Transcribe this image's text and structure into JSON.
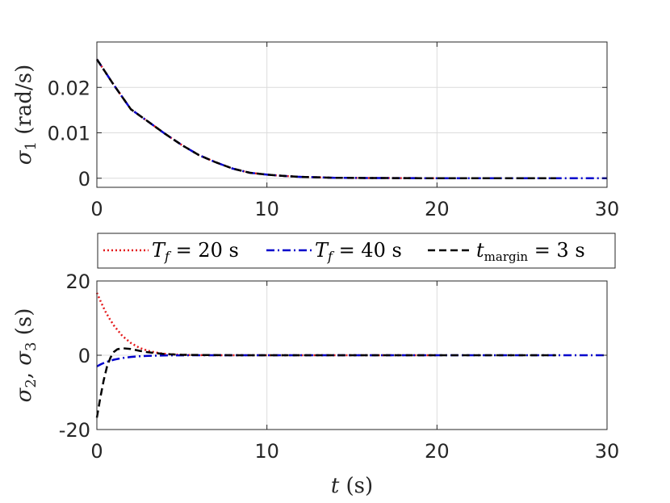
{
  "chart_data": [
    {
      "type": "line",
      "ylabel": "σ1 (rad/s)",
      "xlabel": "",
      "xlim": [
        0,
        30
      ],
      "ylim": [
        -0.002,
        0.03
      ],
      "xticks": [
        0,
        10,
        20,
        30
      ],
      "xtick_labels": [
        "0",
        "10",
        "20",
        "30"
      ],
      "yticks": [
        0,
        0.01,
        0.02
      ],
      "ytick_labels": [
        "0",
        "0.01",
        "0.02"
      ],
      "grid": true,
      "series": [
        {
          "name": "Tf = 20 s",
          "color": "#e41a1c",
          "dash": "dotted",
          "x": [
            0,
            1,
            2,
            3,
            4,
            5,
            6,
            7,
            8,
            9,
            10,
            11,
            12,
            13,
            14,
            16,
            18,
            20
          ],
          "y": [
            0.0262,
            0.0205,
            0.0152,
            0.0125,
            0.0098,
            0.0073,
            0.0051,
            0.0035,
            0.0021,
            0.0012,
            0.0008,
            0.0005,
            0.0003,
            0.0002,
            0.0001,
            5e-05,
            2e-05,
            0.0
          ]
        },
        {
          "name": "Tf = 40 s",
          "color": "#0000cc",
          "dash": "dashdot",
          "x": [
            0,
            1,
            2,
            3,
            4,
            5,
            6,
            7,
            8,
            9,
            10,
            11,
            12,
            13,
            14,
            16,
            18,
            20,
            25,
            30
          ],
          "y": [
            0.0262,
            0.0205,
            0.0152,
            0.0125,
            0.0098,
            0.0073,
            0.0051,
            0.0035,
            0.0021,
            0.0012,
            0.0008,
            0.0005,
            0.0003,
            0.0002,
            0.0001,
            5e-05,
            2e-05,
            0.0,
            0.0,
            0.0
          ]
        },
        {
          "name": "tmargin = 3 s",
          "color": "#000000",
          "dash": "dashed",
          "x": [
            0,
            1,
            2,
            3,
            4,
            5,
            6,
            7,
            8,
            9,
            10,
            11,
            12,
            13,
            14,
            16,
            18,
            20,
            25,
            27
          ],
          "y": [
            0.0262,
            0.0205,
            0.0152,
            0.0125,
            0.0098,
            0.0073,
            0.0051,
            0.0035,
            0.0021,
            0.0012,
            0.0008,
            0.0005,
            0.0003,
            0.0002,
            0.0001,
            5e-05,
            2e-05,
            0.0,
            0.0,
            0.0
          ]
        }
      ]
    },
    {
      "type": "line",
      "ylabel": "σ2, σ3 (s)",
      "xlabel": "t (s)",
      "xlim": [
        0,
        30
      ],
      "ylim": [
        -20,
        20
      ],
      "xticks": [
        0,
        10,
        20,
        30
      ],
      "xtick_labels": [
        "0",
        "10",
        "20",
        "30"
      ],
      "yticks": [
        -20,
        0,
        20
      ],
      "ytick_labels": [
        "-20",
        "0",
        "20"
      ],
      "grid": true,
      "series": [
        {
          "name": "Tf = 20 s",
          "color": "#e41a1c",
          "dash": "dotted",
          "x": [
            0,
            0.25,
            0.5,
            0.75,
            1,
            1.5,
            2,
            2.5,
            3,
            3.5,
            4,
            5,
            6,
            8,
            10,
            15,
            20
          ],
          "y": [
            16.8,
            14.2,
            11.8,
            9.8,
            8.0,
            5.2,
            3.3,
            2.0,
            1.2,
            0.7,
            0.4,
            0.1,
            0.03,
            0,
            0,
            0,
            0
          ]
        },
        {
          "name": "Tf = 40 s",
          "color": "#0000cc",
          "dash": "dashdot",
          "x": [
            0,
            0.25,
            0.5,
            1,
            1.5,
            2,
            2.5,
            3,
            4,
            5,
            6,
            8,
            10,
            15,
            20,
            25,
            30
          ],
          "y": [
            -3.0,
            -2.4,
            -1.9,
            -1.2,
            -0.75,
            -0.45,
            -0.28,
            -0.16,
            -0.05,
            -0.02,
            0,
            0,
            0,
            0,
            0,
            0,
            0
          ]
        },
        {
          "name": "tmargin = 3 s",
          "color": "#000000",
          "dash": "dashed",
          "x": [
            0,
            0.2,
            0.4,
            0.6,
            0.8,
            1.0,
            1.2,
            1.5,
            2.0,
            2.5,
            3,
            4,
            5,
            8,
            10,
            15,
            20,
            25,
            27
          ],
          "y": [
            -16.8,
            -11.5,
            -6.8,
            -3.0,
            -0.6,
            0.9,
            1.6,
            1.9,
            1.7,
            1.2,
            0.8,
            0.3,
            0.1,
            0,
            0,
            0,
            0,
            0,
            0
          ]
        }
      ]
    }
  ],
  "legend": {
    "entries": [
      {
        "name": "Tf = 20 s",
        "color": "#e41a1c",
        "dash": "dotted",
        "parts": [
          "T",
          "f",
          " = 20 s"
        ]
      },
      {
        "name": "Tf = 40 s",
        "color": "#0000cc",
        "dash": "dashdot",
        "parts": [
          "T",
          "f",
          " = 40 s"
        ]
      },
      {
        "name": "tmargin = 3 s",
        "color": "#000000",
        "dash": "dashed",
        "parts": [
          "t",
          "margin",
          " = 3 s"
        ]
      }
    ]
  },
  "labels": {
    "top_y": {
      "sym": "σ",
      "sub": "1",
      "rest": " (rad/s)"
    },
    "bottom_y": {
      "sym1": "σ",
      "sub1": "2",
      "mid": ", ",
      "sym2": "σ",
      "sub2": "3",
      "rest": " (s)"
    },
    "bottom_x": {
      "sym": "t",
      "rest": " (s)"
    }
  }
}
